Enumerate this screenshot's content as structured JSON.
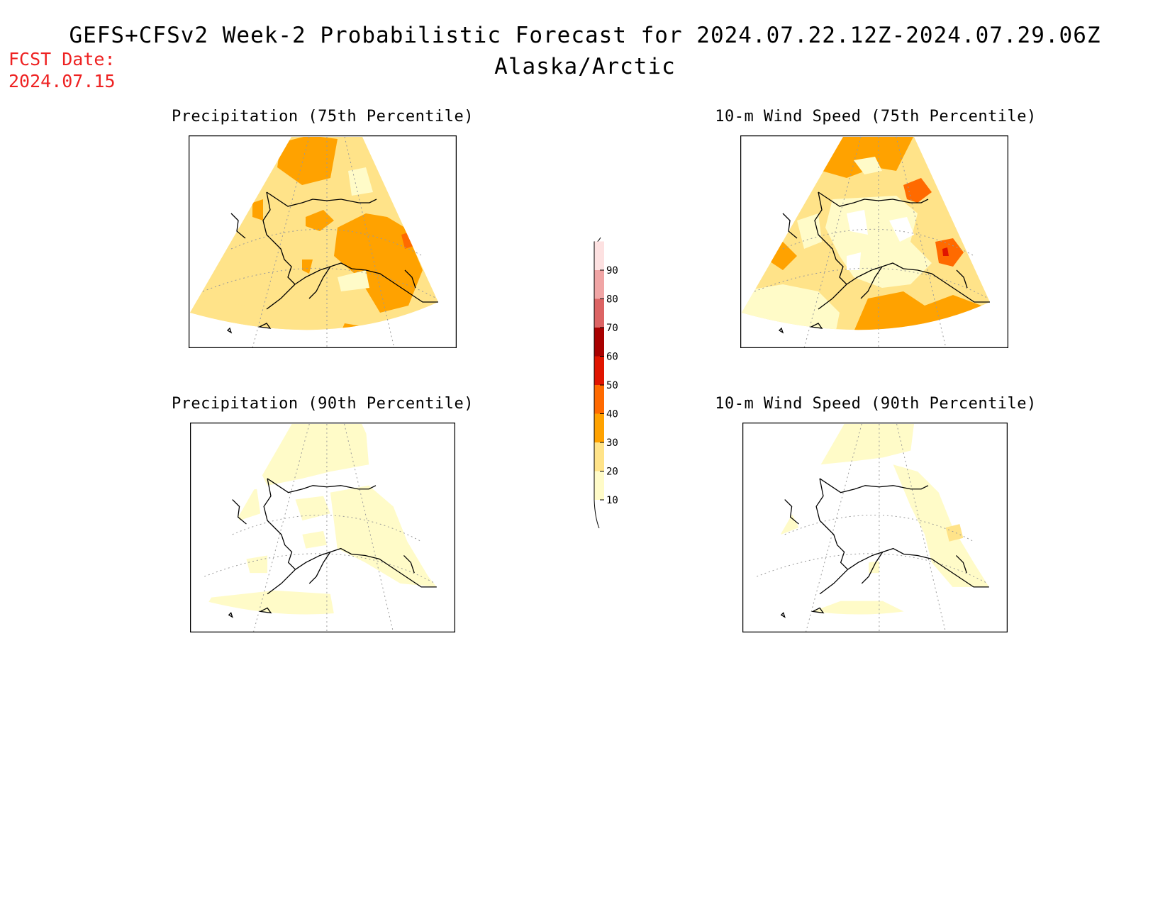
{
  "header": {
    "title": "GEFS+CFSv2 Week-2 Probabilistic Forecast for 2024.07.22.12Z-2024.07.29.06Z",
    "subtitle": "Alaska/Arctic",
    "fcst_label": "FCST Date:",
    "fcst_date": "2024.07.15"
  },
  "panels": [
    {
      "id": "precip75",
      "title": "Precipitation (75th Percentile)"
    },
    {
      "id": "wind75",
      "title": "10-m Wind Speed (75th Percentile)"
    },
    {
      "id": "precip90",
      "title": "Precipitation (90th Percentile)"
    },
    {
      "id": "wind90",
      "title": "10-m Wind Speed (90th Percentile)"
    }
  ],
  "legend": {
    "levels": [
      "10",
      "20",
      "30",
      "40",
      "50",
      "60",
      "70",
      "80",
      "90"
    ],
    "colors": [
      "#fffbc8",
      "#ffe389",
      "#ffa200",
      "#ff6a00",
      "#e01500",
      "#a80000",
      "#dc6464",
      "#f0a5a5",
      "#fde1e1"
    ]
  }
}
